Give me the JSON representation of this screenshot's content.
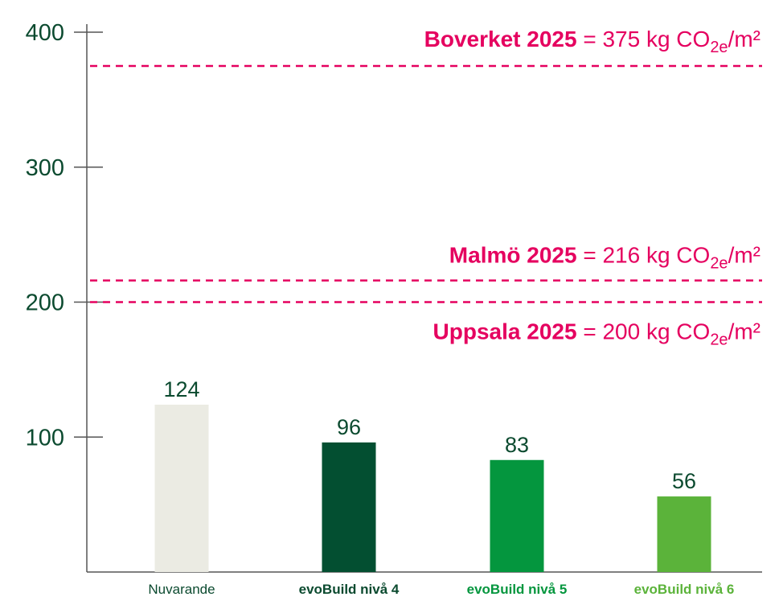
{
  "chart_data": {
    "type": "bar",
    "categories": [
      "Nuvarande",
      "evoBuild nivå 4",
      "evoBuild nivå 5",
      "evoBuild nivå 6"
    ],
    "values": [
      124,
      96,
      83,
      56
    ],
    "value_labels": [
      "124",
      "96",
      "83",
      "56"
    ],
    "bar_colors": [
      "#ebebe3",
      "#034f31",
      "#04963e",
      "#5bb33a"
    ],
    "category_label_colors": [
      "#0b4a2f",
      "#0b4a2f",
      "#04963e",
      "#5bb33a"
    ],
    "category_label_bold": [
      false,
      true,
      true,
      true
    ],
    "yticks": [
      100,
      200,
      300,
      400
    ],
    "ytick_labels": [
      "100",
      "200",
      "300",
      "400"
    ],
    "ylim": [
      0,
      400
    ],
    "grid": false,
    "reference_lines": [
      {
        "name": "Boverket 2025",
        "value": 375,
        "value_text": "= 375 kg CO",
        "subscript": "2e",
        "unit": "/m²"
      },
      {
        "name": "Malmö 2025",
        "value": 216,
        "value_text": "= 216 kg CO",
        "subscript": "2e",
        "unit": "/m²"
      },
      {
        "name": "Uppsala 2025",
        "value": 200,
        "value_text": "= 200 kg CO",
        "subscript": "2e",
        "unit": "/m²"
      }
    ],
    "reference_color": "#e5005f",
    "axis_color": "#555555",
    "text_color": "#0b4a2f"
  }
}
